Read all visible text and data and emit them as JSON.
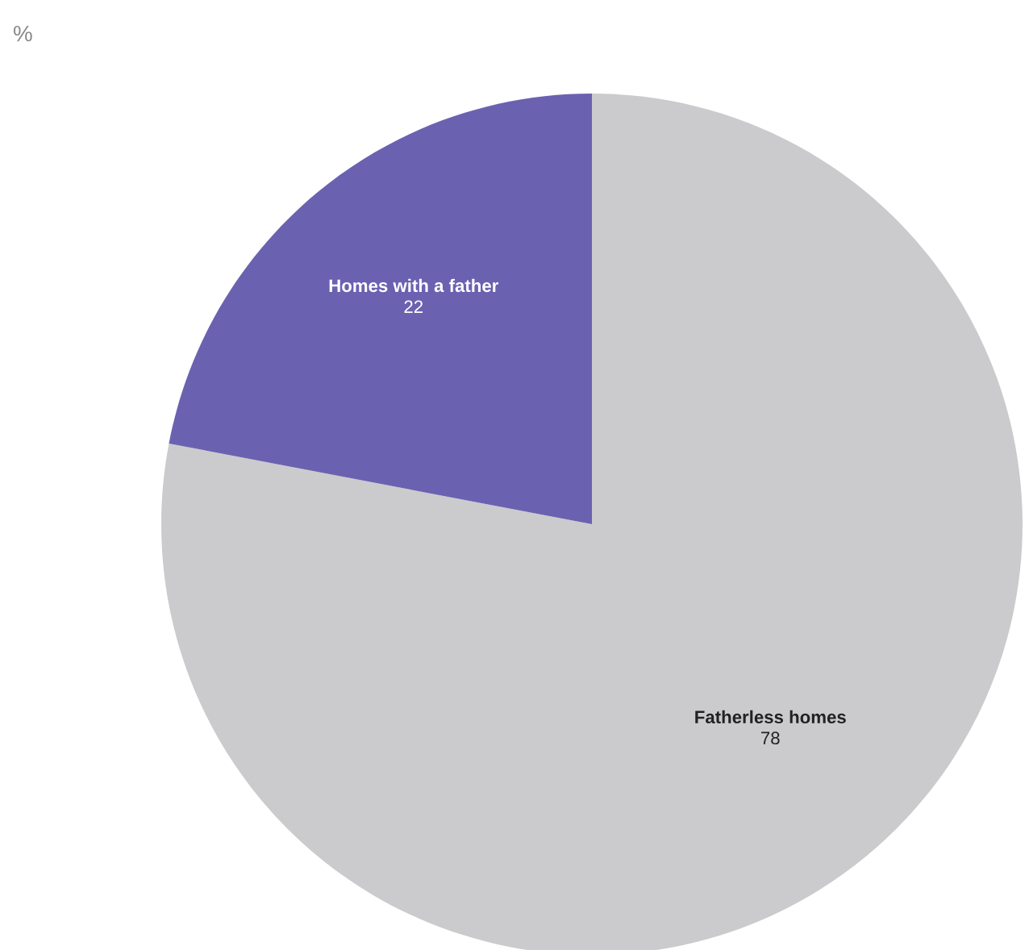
{
  "chart_data": {
    "type": "pie",
    "subtitle": "%",
    "categories": [
      "Fatherless homes",
      "Homes with a father"
    ],
    "values": [
      78,
      22
    ],
    "colors": [
      "#cbcbcd",
      "#6a62b0"
    ],
    "data_labels": true
  }
}
